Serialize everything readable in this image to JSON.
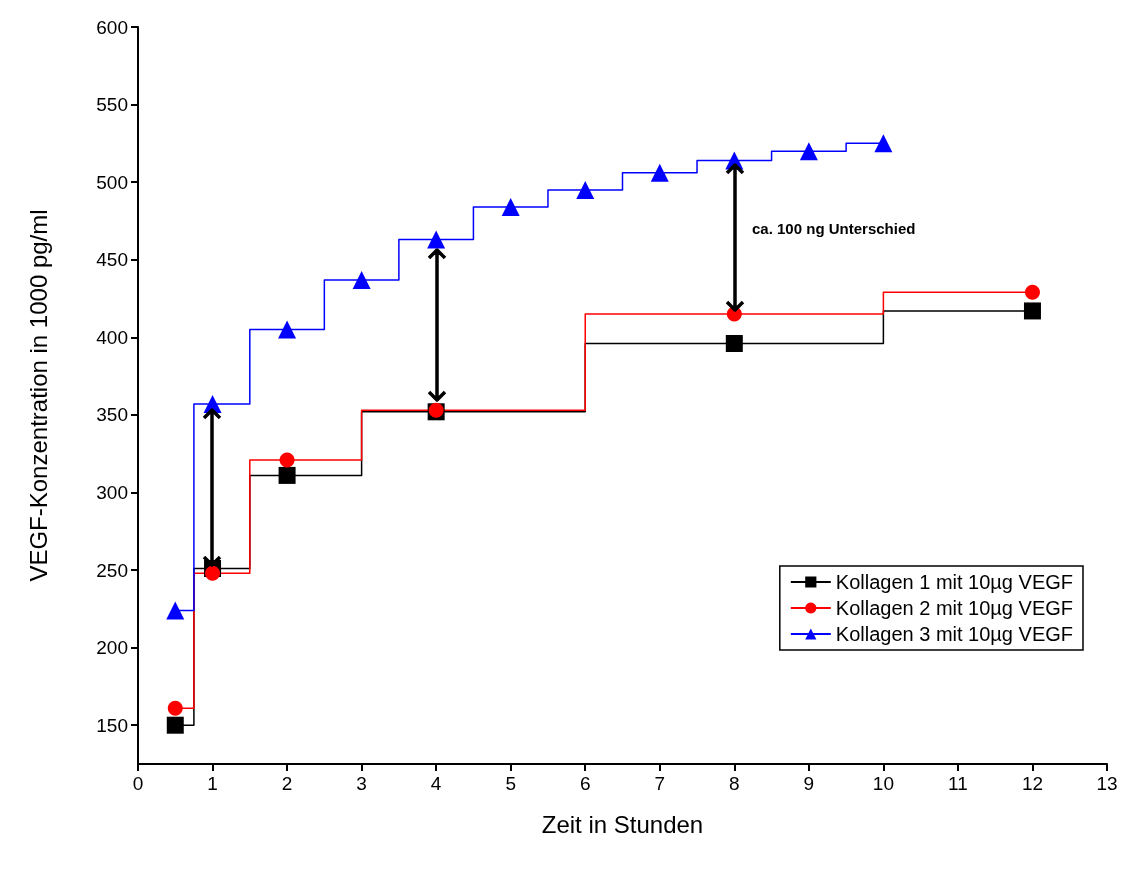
{
  "chart_data": {
    "type": "step",
    "xlabel": "Zeit in Stunden",
    "ylabel": "VEGF-Konzentration in 1000 pg/ml",
    "xlim": [
      0,
      13
    ],
    "xticks": [
      0,
      1,
      2,
      3,
      4,
      5,
      6,
      7,
      8,
      9,
      10,
      11,
      12,
      13
    ],
    "ylim": [
      125,
      600
    ],
    "yticks": [
      150,
      200,
      250,
      300,
      350,
      400,
      450,
      500,
      550,
      600
    ],
    "grid": false,
    "legend": "bottom right",
    "annotations": [
      "ca. 100 ng Unterschied"
    ],
    "series": [
      {
        "name": "Kollagen 1 mit 10µg VEGF",
        "color": "#000000",
        "marker": "square",
        "x": [
          0.5,
          1,
          2,
          4,
          8,
          12
        ],
        "values": [
          150,
          251,
          311,
          352,
          396,
          417
        ]
      },
      {
        "name": "Kollagen 2 mit 10µg VEGF",
        "color": "#ff0000",
        "marker": "circle",
        "x": [
          0.5,
          1,
          2,
          4,
          8,
          12
        ],
        "values": [
          161,
          248,
          321,
          353,
          415,
          429
        ]
      },
      {
        "name": "Kollagen 3 mit 10µg VEGF",
        "color": "#0000ff",
        "marker": "triangle",
        "x": [
          0.5,
          1,
          2,
          3,
          4,
          5,
          6,
          7,
          8,
          9,
          10
        ],
        "values": [
          224,
          357,
          405,
          437,
          463,
          484,
          495,
          506,
          514,
          520,
          525
        ]
      }
    ]
  }
}
